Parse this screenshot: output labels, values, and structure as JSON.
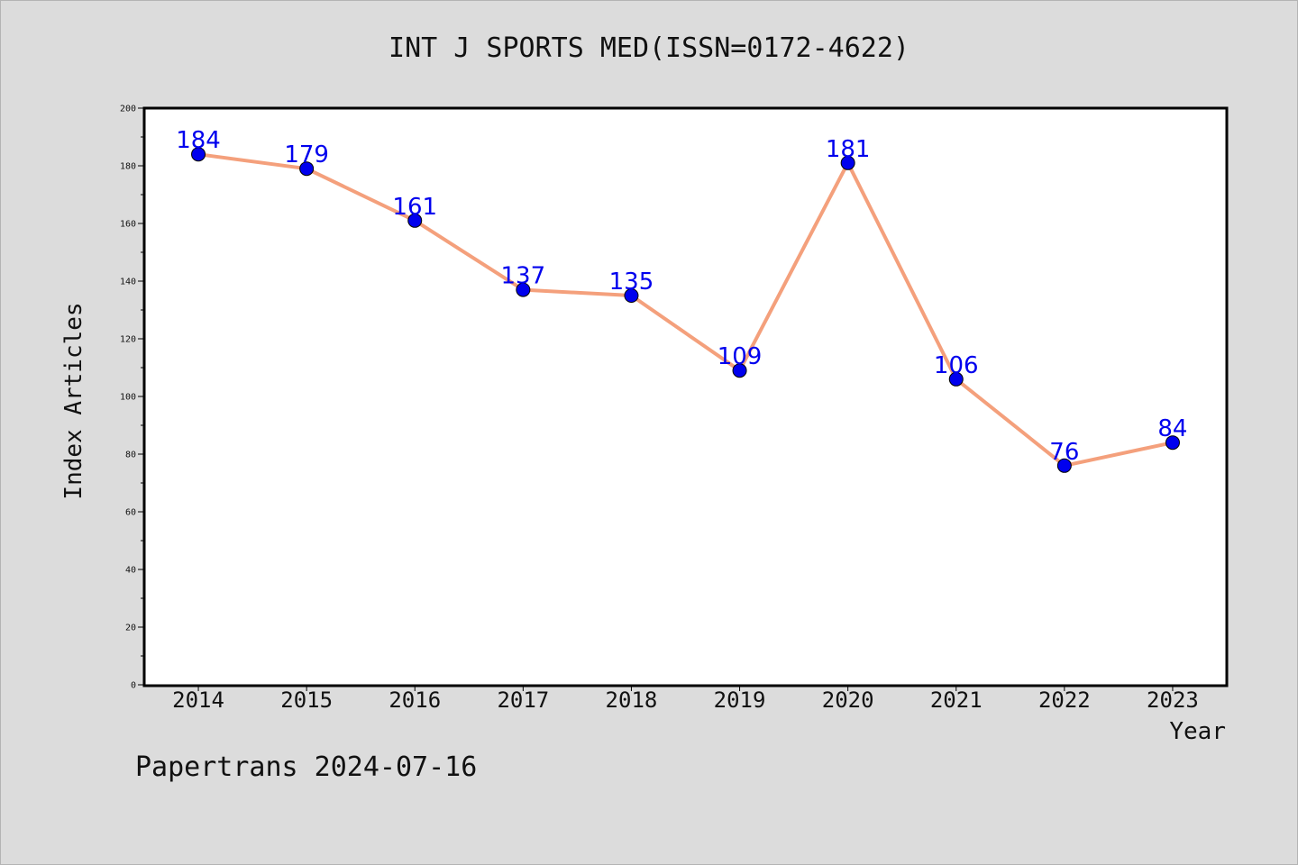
{
  "title": "INT J SPORTS MED(ISSN=0172-4622)",
  "footer": "Papertrans 2024-07-16",
  "colors": {
    "line": "#f4a07c",
    "marker": "#0000ee",
    "label": "#0000ee",
    "background": "#dcdcdc",
    "plot_background": "#ffffff"
  },
  "chart_data": {
    "type": "line",
    "title": "INT J SPORTS MED(ISSN=0172-4622)",
    "xlabel": "Year",
    "ylabel": "Index Articles",
    "categories": [
      "2014",
      "2015",
      "2016",
      "2017",
      "2018",
      "2019",
      "2020",
      "2021",
      "2022",
      "2023"
    ],
    "values": [
      184,
      179,
      161,
      137,
      135,
      109,
      181,
      106,
      76,
      84
    ],
    "ylim": [
      0,
      200
    ],
    "yticks": [
      0,
      20,
      40,
      60,
      80,
      100,
      120,
      140,
      160,
      180,
      200
    ],
    "grid": false,
    "legend": "none"
  }
}
